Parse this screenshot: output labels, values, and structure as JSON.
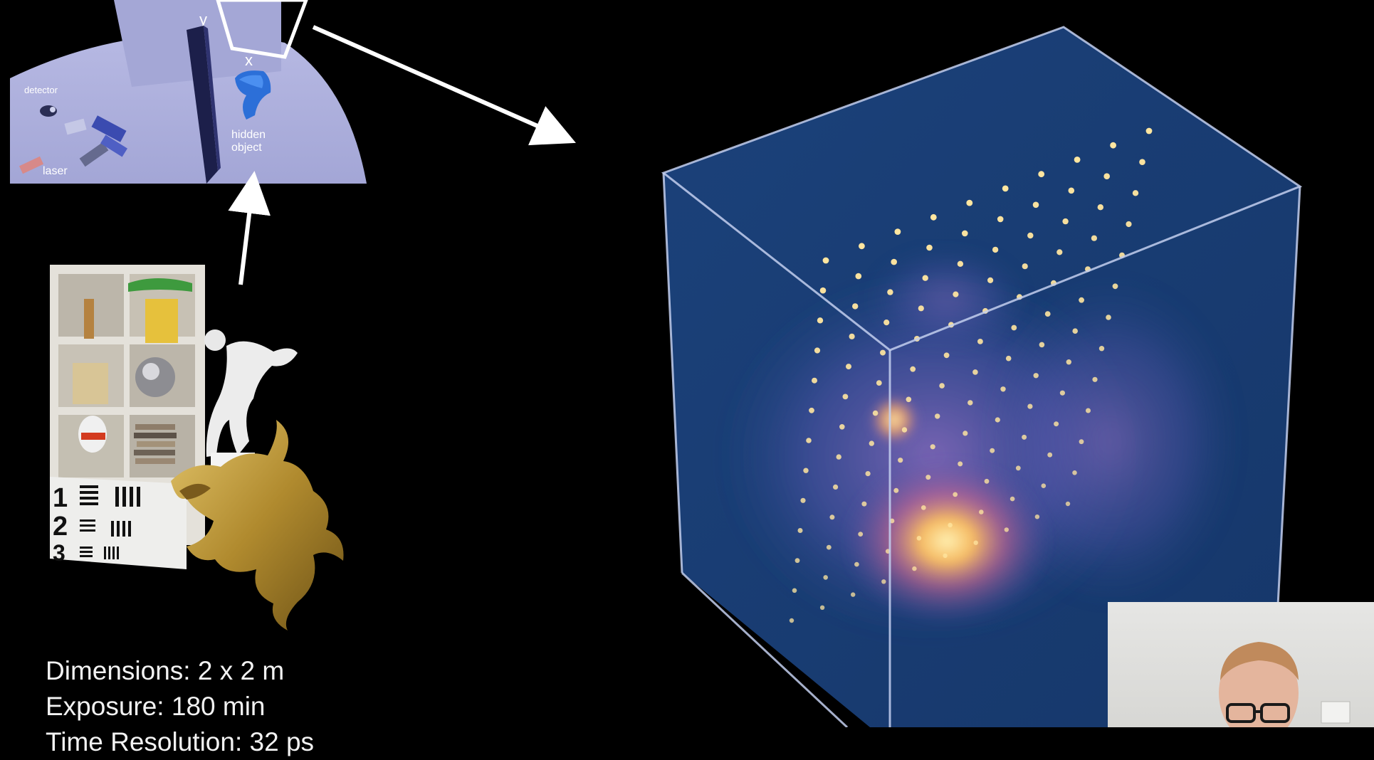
{
  "scene_labels": {
    "axis_y": "y",
    "axis_x": "x",
    "detector": "detector",
    "laser": "laser",
    "hidden_object_line1": "hidden",
    "hidden_object_line2": "object"
  },
  "chart_labels": {
    "numbers": [
      "1",
      "2",
      "3"
    ]
  },
  "specs": {
    "dimensions": "Dimensions: 2 x 2 m",
    "exposure": "Exposure: 180 min",
    "time_resolution": "Time Resolution: 32 ps"
  },
  "colors": {
    "background": "#000000",
    "room_floor": "#aeb0db",
    "room_wall": "#9ea1cf",
    "volume_blue": "#1c3f7a",
    "volume_edge": "#b9c6e6",
    "hot_core": "#ffd27a",
    "dots": "#ffe9a8"
  },
  "icons": {
    "arrow_to_volume": "arrow-right-down-icon",
    "arrow_to_scene": "arrow-up-icon"
  }
}
